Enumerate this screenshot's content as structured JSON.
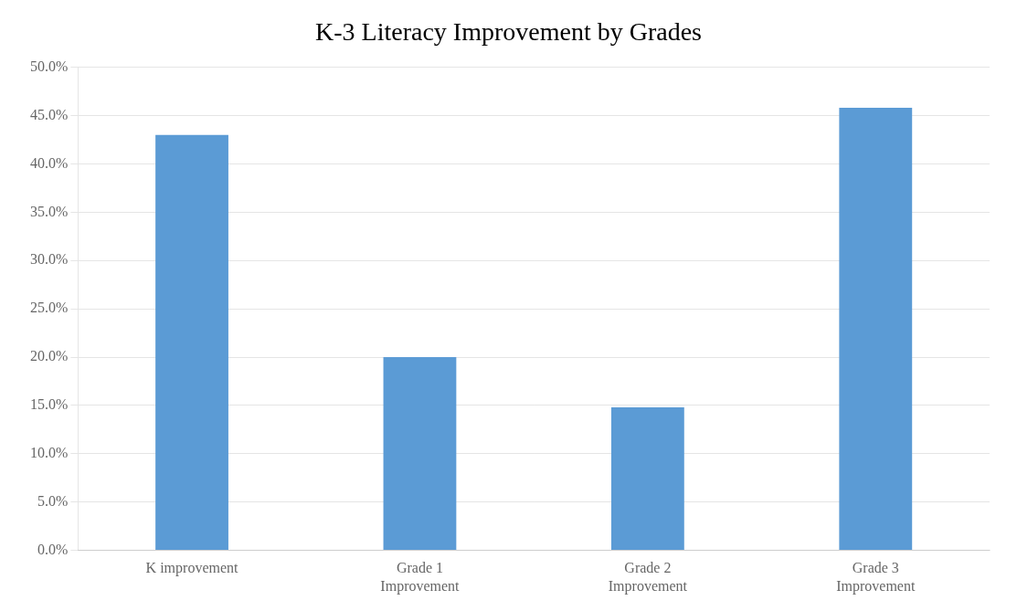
{
  "chart_data": {
    "type": "bar",
    "title": "K-3 Literacy Improvement by Grades",
    "categories": [
      "K improvement",
      "Grade 1\nImprovement",
      "Grade 2\nImprovement",
      "Grade 3\nImprovement"
    ],
    "values": [
      0.43,
      0.2,
      0.148,
      0.458
    ],
    "color": "#5b9bd5",
    "ylim": [
      0,
      0.5
    ],
    "yticks": [
      {
        "value": 0.0,
        "label": "0.0%"
      },
      {
        "value": 0.05,
        "label": "5.0%"
      },
      {
        "value": 0.1,
        "label": "10.0%"
      },
      {
        "value": 0.15,
        "label": "15.0%"
      },
      {
        "value": 0.2,
        "label": "20.0%"
      },
      {
        "value": 0.25,
        "label": "25.0%"
      },
      {
        "value": 0.3,
        "label": "30.0%"
      },
      {
        "value": 0.35,
        "label": "35.0%"
      },
      {
        "value": 0.4,
        "label": "40.0%"
      },
      {
        "value": 0.45,
        "label": "45.0%"
      },
      {
        "value": 0.5,
        "label": "50.0%"
      }
    ],
    "grid": true
  }
}
